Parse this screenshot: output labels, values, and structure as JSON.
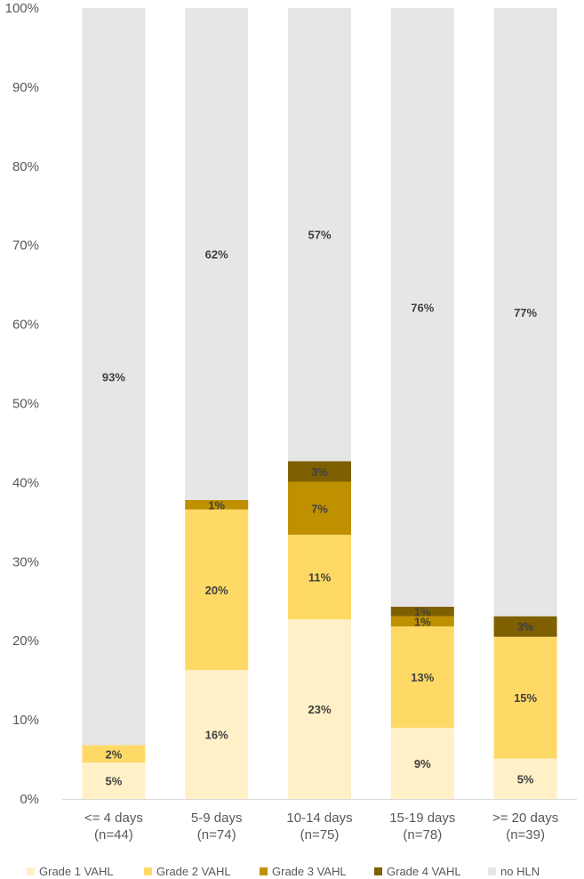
{
  "chart_data": {
    "type": "stacked-bar",
    "categories": [
      [
        "<= 4 days",
        "(n=44)"
      ],
      [
        "5-9 days",
        "(n=74)"
      ],
      [
        "10-14 days",
        "(n=75)"
      ],
      [
        "15-19 days",
        "(n=78)"
      ],
      [
        ">= 20 days",
        "(n=39)"
      ]
    ],
    "yticks": [
      "0%",
      "10%",
      "20%",
      "30%",
      "40%",
      "50%",
      "60%",
      "70%",
      "80%",
      "90%",
      "100%"
    ],
    "ylim": [
      0,
      100
    ],
    "legend_position": "bottom",
    "series": [
      {
        "name": "Grade 1 VAHL",
        "color": "#FFF0C8",
        "values": [
          4.6,
          16.3,
          22.7,
          9.0,
          5.1
        ],
        "labels": [
          "5%",
          "16%",
          "23%",
          "9%",
          "5%"
        ]
      },
      {
        "name": "Grade 2 VAHL",
        "color": "#FFD966",
        "values": [
          2.2,
          20.3,
          10.7,
          12.8,
          15.4
        ],
        "labels": [
          "2%",
          "20%",
          "11%",
          "13%",
          "15%"
        ]
      },
      {
        "name": "Grade 3 VAHL",
        "color": "#BF9000",
        "values": [
          0,
          1.2,
          6.7,
          1.3,
          0
        ],
        "labels": [
          "",
          "1%",
          "7%",
          "1%",
          ""
        ]
      },
      {
        "name": "Grade 4 VAHL",
        "color": "#7F6000",
        "values": [
          0,
          0,
          2.6,
          1.2,
          2.6
        ],
        "labels": [
          "",
          "",
          "3%",
          "1%",
          "3%"
        ]
      },
      {
        "name": "no HLN",
        "color": "#E7E6E6",
        "values": [
          93.2,
          62.2,
          57.3,
          75.7,
          76.9
        ],
        "labels": [
          "93%",
          "62%",
          "57%",
          "76%",
          "77%"
        ]
      }
    ]
  }
}
